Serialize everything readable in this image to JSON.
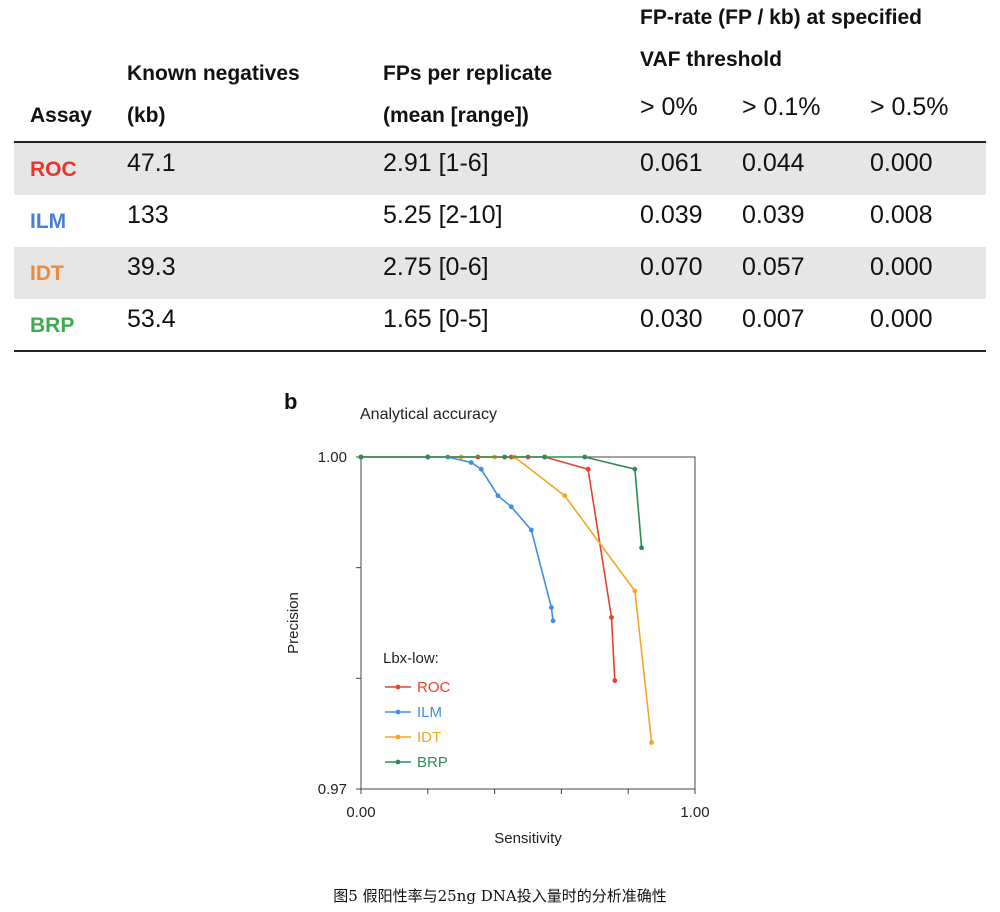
{
  "table": {
    "headers": {
      "assay": "Assay",
      "known_neg_line1": "Known negatives",
      "known_neg_line2": "(kb)",
      "fps_line1": "FPs per replicate",
      "fps_line2": "(mean [range])",
      "fprate_line1": "FP-rate (FP / kb) at specified",
      "fprate_line2": "VAF threshold",
      "vaf0": "> 0%",
      "vaf01": "> 0.1%",
      "vaf05": "> 0.5%"
    },
    "rows": [
      {
        "assay": "ROC",
        "color": "#e8352a",
        "known_negatives": "47.1",
        "fps": "2.91 [1-6]",
        "vaf0": "0.061",
        "vaf01": "0.044",
        "vaf05": "0.000"
      },
      {
        "assay": "ILM",
        "color": "#4a7fd6",
        "known_negatives": "133",
        "fps": "5.25 [2-10]",
        "vaf0": "0.039",
        "vaf01": "0.039",
        "vaf05": "0.008"
      },
      {
        "assay": "IDT",
        "color": "#ef8a3a",
        "known_negatives": "39.3",
        "fps": "2.75 [0-6]",
        "vaf0": "0.070",
        "vaf01": "0.057",
        "vaf05": "0.000"
      },
      {
        "assay": "BRP",
        "color": "#3cab4f",
        "known_negatives": "53.4",
        "fps": "1.65 [0-5]",
        "vaf0": "0.030",
        "vaf01": "0.007",
        "vaf05": "0.000"
      }
    ]
  },
  "panel_label": "b",
  "caption": "图5 假阳性率与25ng DNA投入量时的分析准确性",
  "chart_data": {
    "type": "line",
    "title": "Analytical accuracy",
    "xlabel": "Sensitivity",
    "ylabel": "Precision",
    "xlim": [
      0,
      1
    ],
    "ylim": [
      0.97,
      1.0
    ],
    "xtick_labels": [
      "0.00",
      "1.00"
    ],
    "ytick_labels": [
      "0.97",
      "1.00"
    ],
    "grid": false,
    "legend_title": "Lbx-low:",
    "legend_position": "bottom-left",
    "series": [
      {
        "name": "ROC",
        "color": "#e8402f",
        "x": [
          0.0,
          0.2,
          0.35,
          0.45,
          0.5,
          0.55,
          0.68,
          0.75,
          0.76
        ],
        "y": [
          1.0,
          1.0,
          1.0,
          1.0,
          1.0,
          1.0,
          0.9989,
          0.9855,
          0.9798
        ]
      },
      {
        "name": "ILM",
        "color": "#3d8fe6",
        "x": [
          0.0,
          0.2,
          0.26,
          0.33,
          0.36,
          0.41,
          0.45,
          0.51,
          0.57,
          0.575
        ],
        "y": [
          1.0,
          1.0,
          1.0,
          0.9995,
          0.9989,
          0.9965,
          0.9955,
          0.9934,
          0.9864,
          0.9852
        ]
      },
      {
        "name": "IDT",
        "color": "#f5a623",
        "x": [
          0.0,
          0.2,
          0.3,
          0.4,
          0.46,
          0.61,
          0.82,
          0.87
        ],
        "y": [
          1.0,
          1.0,
          1.0,
          1.0,
          1.0,
          0.9965,
          0.9879,
          0.9742
        ]
      },
      {
        "name": "BRP",
        "color": "#2e8b57",
        "x": [
          0.0,
          0.2,
          0.43,
          0.55,
          0.67,
          0.82,
          0.84
        ],
        "y": [
          1.0,
          1.0,
          1.0,
          1.0,
          1.0,
          0.9989,
          0.9918
        ]
      }
    ]
  }
}
